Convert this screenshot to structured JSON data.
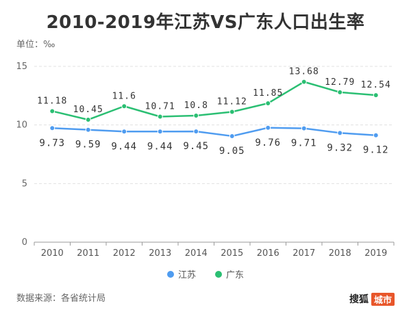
{
  "title": "2010-2019年江苏VS广东人口出生率",
  "unit_label": "单位：‰",
  "source": "数据来源：各省统计局",
  "brand": {
    "name": "搜狐",
    "tag": "城市"
  },
  "colors": {
    "jiangsu": "#4f9cf0",
    "guangdong": "#2bbf73",
    "grid": "#e0e0e0",
    "axis": "#999999"
  },
  "chart_data": {
    "type": "line",
    "title": "2010-2019年江苏VS广东人口出生率",
    "xlabel": "",
    "ylabel": "单位：‰",
    "x": [
      "2010",
      "2011",
      "2012",
      "2013",
      "2014",
      "2015",
      "2016",
      "2017",
      "2018",
      "2019"
    ],
    "ylim": [
      0,
      15
    ],
    "yticks": [
      0,
      5,
      10,
      15
    ],
    "grid": true,
    "legend_position": "bottom",
    "series": [
      {
        "name": "江苏",
        "color": "#4f9cf0",
        "values": [
          9.73,
          9.59,
          9.44,
          9.44,
          9.45,
          9.05,
          9.76,
          9.71,
          9.32,
          9.12
        ],
        "labels": [
          "9.73",
          "9.59",
          "9.44",
          "9.44",
          "9.45",
          "9.05",
          "9.76",
          "9.71",
          "9.32",
          "9.12"
        ]
      },
      {
        "name": "广东",
        "color": "#2bbf73",
        "values": [
          11.18,
          10.45,
          11.6,
          10.71,
          10.8,
          11.12,
          11.85,
          13.68,
          12.79,
          12.54
        ],
        "labels": [
          "11.18",
          "10.45",
          "11.6",
          "10.71",
          "10.8",
          "11.12",
          "11.85",
          "13.68",
          "12.79",
          "12.54"
        ]
      }
    ]
  }
}
